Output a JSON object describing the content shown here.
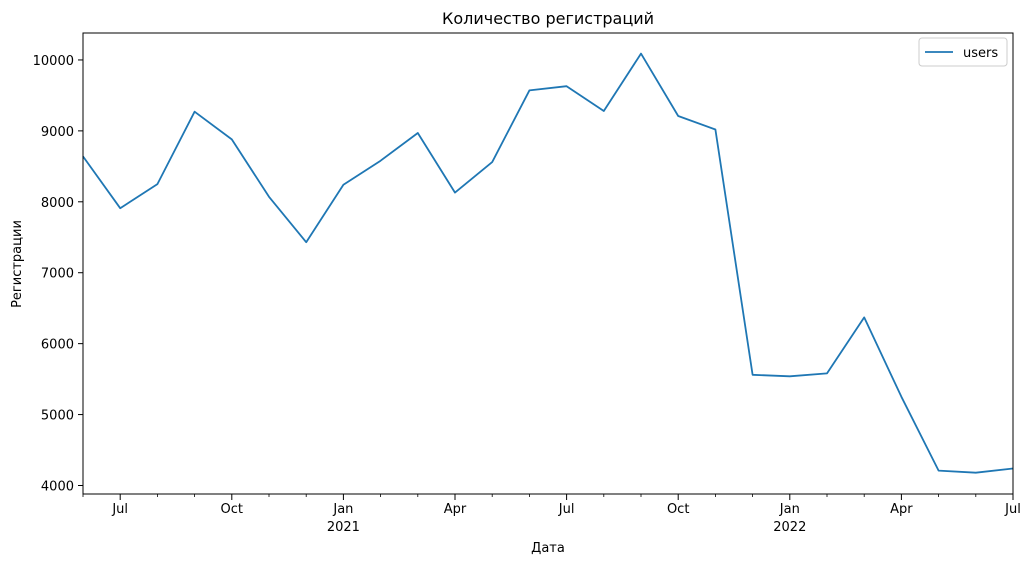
{
  "chart_data": {
    "type": "line",
    "title": "Количество регистраций",
    "xlabel": "Дата",
    "ylabel": "Регистрации",
    "legend": "top-right",
    "grid": false,
    "ylim": [
      3880,
      10380
    ],
    "xlim": [
      "2020-06",
      "2022-07"
    ],
    "x": [
      "2020-06",
      "2020-07",
      "2020-08",
      "2020-09",
      "2020-10",
      "2020-11",
      "2020-12",
      "2021-01",
      "2021-02",
      "2021-03",
      "2021-04",
      "2021-05",
      "2021-06",
      "2021-07",
      "2021-08",
      "2021-09",
      "2021-10",
      "2021-11",
      "2021-12",
      "2022-01",
      "2022-02",
      "2022-03",
      "2022-04",
      "2022-05",
      "2022-06",
      "2022-07"
    ],
    "series": [
      {
        "name": "users",
        "color": "#1f77b4",
        "values": [
          8640,
          7910,
          8250,
          9270,
          8880,
          8070,
          7430,
          8240,
          8580,
          8970,
          8130,
          8560,
          9570,
          9630,
          9280,
          10090,
          9210,
          9020,
          5560,
          5540,
          5580,
          6370,
          5250,
          4210,
          4180,
          4240
        ]
      }
    ],
    "yticks": [
      "4000",
      "5000",
      "6000",
      "7000",
      "8000",
      "9000",
      "10000"
    ],
    "xticks_major": [
      {
        "x": "2020-07",
        "label": "Jul",
        "year": ""
      },
      {
        "x": "2020-10",
        "label": "Oct",
        "year": ""
      },
      {
        "x": "2021-01",
        "label": "Jan",
        "year": "2021"
      },
      {
        "x": "2021-04",
        "label": "Apr",
        "year": ""
      },
      {
        "x": "2021-07",
        "label": "Jul",
        "year": ""
      },
      {
        "x": "2021-10",
        "label": "Oct",
        "year": ""
      },
      {
        "x": "2022-01",
        "label": "Jan",
        "year": "2022"
      },
      {
        "x": "2022-04",
        "label": "Apr",
        "year": ""
      },
      {
        "x": "2022-07",
        "label": "Jul",
        "year": ""
      }
    ]
  }
}
